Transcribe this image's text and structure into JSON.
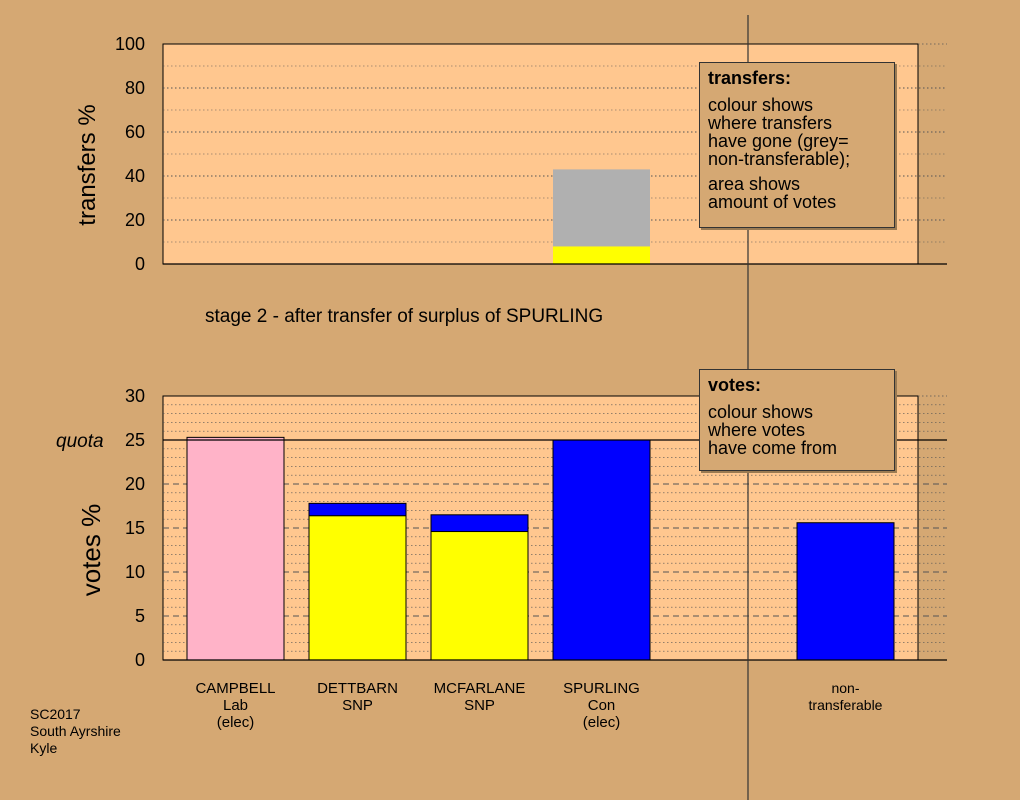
{
  "chart_data": [
    {
      "type": "bar",
      "stacked": true,
      "ylabel": "transfers %",
      "ylim": [
        0,
        100
      ],
      "yticks": [
        0,
        20,
        40,
        60,
        80,
        100
      ],
      "categories": [
        "CAMPBELL Lab (elec)",
        "DETTBARN SNP",
        "MCFARLANE SNP",
        "SPURLING Con (elec)",
        "non-transferable"
      ],
      "series": [
        {
          "color": "#ffff00",
          "values": [
            0,
            0,
            0,
            8,
            0
          ]
        },
        {
          "color": "#b0b0b0",
          "values": [
            0,
            0,
            0,
            35,
            0
          ]
        }
      ],
      "grid": true
    },
    {
      "type": "bar",
      "stacked": true,
      "ylabel": "votes %",
      "ylim": [
        0,
        30
      ],
      "yticks": [
        0,
        5,
        10,
        15,
        20,
        25,
        30
      ],
      "quota": 25,
      "quota_label": "quota",
      "categories": [
        "CAMPBELL Lab (elec)",
        "DETTBARN SNP",
        "MCFARLANE SNP",
        "SPURLING Con (elec)",
        "non-transferable"
      ],
      "category_lines": [
        [
          "CAMPBELL",
          "Lab",
          "(elec)"
        ],
        [
          "DETTBARN",
          "SNP"
        ],
        [
          "MCFARLANE",
          "SNP"
        ],
        [
          "SPURLING",
          "Con",
          "(elec)"
        ],
        [
          "non-",
          "transferable"
        ]
      ],
      "series": [
        {
          "color": "#ffb3c8",
          "values": [
            25.3,
            0,
            0,
            0,
            0
          ]
        },
        {
          "color": "#ffff00",
          "values": [
            0,
            16.4,
            14.6,
            0,
            0
          ]
        },
        {
          "color": "#0000ff",
          "values": [
            0,
            1.4,
            1.9,
            25.0,
            15.6
          ]
        }
      ],
      "grid": true
    }
  ],
  "colors": {
    "background": "#d5a873",
    "plot_background": "#ffc78f"
  },
  "stage_text": "stage 2 - after transfer of surplus of SPURLING",
  "transfers_box": {
    "title": "transfers:",
    "line1": "colour shows\nwhere transfers\nhave gone (grey=\nnon-transferable);",
    "line2": "area shows\namount of votes"
  },
  "votes_box": {
    "title": "votes:",
    "line1": "colour shows\nwhere votes\nhave come from"
  },
  "footer": "SC2017\nSouth Ayrshire\nKyle"
}
